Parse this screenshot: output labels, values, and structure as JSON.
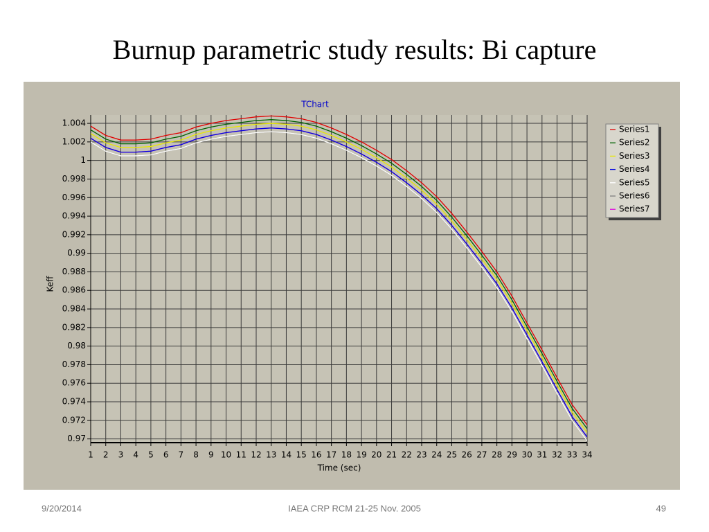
{
  "title": "Burnup parametric study results: Bi capture",
  "footer": {
    "date": "9/20/2014",
    "center": "IAEA CRP RCM 21-25 Nov. 2005",
    "page": "49"
  },
  "chart_data": {
    "type": "line",
    "title": "TChart",
    "x_label": "Time (sec)",
    "y_label": "Keff",
    "x": [
      1,
      2,
      3,
      4,
      5,
      6,
      7,
      8,
      9,
      10,
      11,
      12,
      13,
      14,
      15,
      16,
      17,
      18,
      19,
      20,
      21,
      22,
      23,
      24,
      25,
      26,
      27,
      28,
      29,
      30,
      31,
      32,
      33,
      34
    ],
    "xlim": [
      1,
      34
    ],
    "xticks": [
      1,
      2,
      3,
      4,
      5,
      6,
      7,
      8,
      9,
      10,
      11,
      12,
      13,
      14,
      15,
      16,
      17,
      18,
      19,
      20,
      21,
      22,
      23,
      24,
      25,
      26,
      27,
      28,
      29,
      30,
      31,
      32,
      33,
      34
    ],
    "ylim": [
      0.9696,
      1.0049
    ],
    "yticks": [
      1.004,
      1.002,
      1,
      0.998,
      0.996,
      0.994,
      0.992,
      0.99,
      0.988,
      0.986,
      0.984,
      0.982,
      0.98,
      0.978,
      0.976,
      0.974,
      0.972,
      0.97
    ],
    "grid": true,
    "legend": "right",
    "series": [
      {
        "name": "Series1",
        "color": "#e00000",
        "values": [
          1.0037,
          1.0027,
          1.0022,
          1.0022,
          1.0023,
          1.0027,
          1.003,
          1.0036,
          1.004,
          1.0043,
          1.0045,
          1.0047,
          1.0048,
          1.0047,
          1.0045,
          1.0041,
          1.0035,
          1.0028,
          1.002,
          1.0011,
          1.0001,
          0.9989,
          0.9976,
          0.9961,
          0.9943,
          0.9923,
          0.9902,
          0.988,
          0.9854,
          0.9825,
          0.9796,
          0.9766,
          0.9737,
          0.9715
        ]
      },
      {
        "name": "Series2",
        "color": "#006400",
        "values": [
          1.0033,
          1.0023,
          1.0018,
          1.0018,
          1.0019,
          1.0023,
          1.0026,
          1.0032,
          1.0036,
          1.0039,
          1.0041,
          1.0043,
          1.0044,
          1.0043,
          1.0041,
          1.0037,
          1.0031,
          1.0024,
          1.0016,
          1.0007,
          0.9997,
          0.9985,
          0.9972,
          0.9957,
          0.9939,
          0.9919,
          0.9898,
          0.9876,
          0.985,
          0.9821,
          0.9792,
          0.9762,
          0.9733,
          0.9711
        ]
      },
      {
        "name": "Series3",
        "color": "#e8e800",
        "values": [
          1.0029,
          1.0019,
          1.0014,
          1.0014,
          1.0015,
          1.0019,
          1.0022,
          1.0028,
          1.0032,
          1.0035,
          1.0037,
          1.0039,
          1.004,
          1.0039,
          1.0037,
          1.0033,
          1.0027,
          1.002,
          1.0012,
          1.0003,
          0.9993,
          0.9981,
          0.9968,
          0.9953,
          0.9935,
          0.9915,
          0.9894,
          0.9872,
          0.9846,
          0.9817,
          0.9788,
          0.9758,
          0.9729,
          0.9707
        ]
      },
      {
        "name": "Series4",
        "color": "#0000e0",
        "values": [
          1.0024,
          1.0014,
          1.0009,
          1.0009,
          1.001,
          1.0014,
          1.0017,
          1.0023,
          1.0027,
          1.003,
          1.0032,
          1.0034,
          1.0035,
          1.0034,
          1.0032,
          1.0028,
          1.0022,
          1.0015,
          1.0007,
          0.9998,
          0.9988,
          0.9976,
          0.9963,
          0.9948,
          0.993,
          0.991,
          0.9889,
          0.9867,
          0.9841,
          0.9812,
          0.9783,
          0.9753,
          0.9724,
          0.9702
        ]
      },
      {
        "name": "Series5",
        "color": "#ffffff",
        "values": [
          1.002,
          1.001,
          1.0005,
          1.0005,
          1.0006,
          1.001,
          1.0013,
          1.0019,
          1.0023,
          1.0026,
          1.0028,
          1.003,
          1.0031,
          1.003,
          1.0028,
          1.0024,
          1.0018,
          1.0011,
          1.0003,
          0.9994,
          0.9984,
          0.9972,
          0.9959,
          0.9944,
          0.9926,
          0.9906,
          0.9885,
          0.9863,
          0.9837,
          0.9808,
          0.9779,
          0.9749,
          0.972,
          0.9698
        ]
      },
      {
        "name": "Series6",
        "color": "#808080",
        "values": [
          1.002,
          1.001,
          1.0005,
          1.0005,
          1.0006,
          1.001,
          1.0013,
          1.0019,
          1.0023,
          1.0026,
          1.0028,
          1.003,
          1.0031,
          1.003,
          1.0028,
          1.0024,
          1.0018,
          1.0011,
          1.0003,
          0.9994,
          0.9984,
          0.9972,
          0.9959,
          0.9944,
          0.9926,
          0.9906,
          0.9885,
          0.9863,
          0.9837,
          0.9808,
          0.9779,
          0.9749,
          0.972,
          0.9698
        ]
      },
      {
        "name": "Series7",
        "color": "#e000e0",
        "values": [
          1.0024,
          1.0014,
          1.0009,
          1.0009,
          1.001,
          1.0014,
          1.0017,
          1.0023,
          1.0027,
          1.003,
          1.0032,
          1.0034,
          1.0035,
          1.0034,
          1.0032,
          1.0028,
          1.0022,
          1.0015,
          1.0007,
          0.9998,
          0.9988,
          0.9976,
          0.9963,
          0.9948,
          0.993,
          0.991,
          0.9889,
          0.9867,
          0.9841,
          0.9812,
          0.9783,
          0.9753,
          0.9724,
          0.9702
        ]
      }
    ]
  }
}
